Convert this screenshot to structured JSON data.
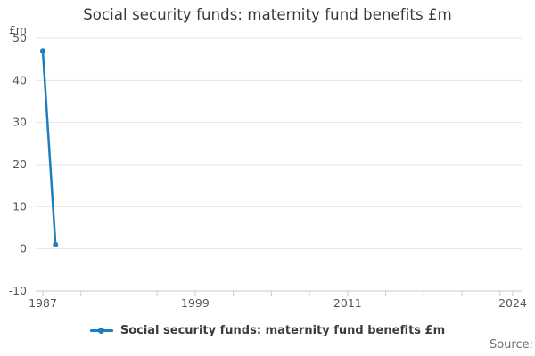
{
  "title": "Social security funds: maternity fund benefits £m",
  "source_label": "Source:",
  "legend": {
    "label": "Social security funds: maternity fund benefits £m"
  },
  "chart_data": {
    "type": "line",
    "title": "Social security funds: maternity fund benefits £m",
    "unit_label": "£m",
    "xlabel": "",
    "ylabel": "£m",
    "x": [
      1987,
      1988
    ],
    "series": [
      {
        "name": "Social security funds: maternity fund benefits £m",
        "values": [
          47,
          1
        ]
      }
    ],
    "xlim": [
      1987,
      2024
    ],
    "ylim": [
      -10,
      50
    ],
    "y_ticks": [
      50,
      40,
      30,
      20,
      10,
      0,
      -10
    ],
    "x_tick_labels": [
      1987,
      1999,
      2011,
      2024
    ],
    "x_minor_tick_step_years": 3,
    "grid": true,
    "legend_position": "bottom",
    "colors": {
      "line": "#1e7dbe",
      "grid": "#e6e6e6",
      "axis": "#c2cedd",
      "tick_label": "#555555",
      "title": "#383838",
      "source": "#707070"
    }
  }
}
